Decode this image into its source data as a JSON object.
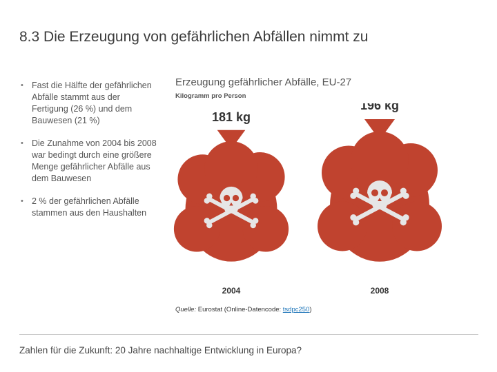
{
  "slide": {
    "number": "8.3",
    "title": "Die Erzeugung von gefährlichen Abfällen nimmt zu"
  },
  "bullets": [
    "Fast die Hälfte der gefährlichen Abfälle stammt aus der Fertigung (26 %) und dem Bauwesen (21 %)",
    "Die Zunahme von 2004 bis 2008 war bedingt durch eine größere Menge gefährlicher Abfälle aus dem Bauwesen",
    "2 % der gefährlichen Abfälle stammen aus den Haushalten"
  ],
  "bullet_marker": "•",
  "chart_data": {
    "type": "bar",
    "title": "Erzeugung gefährlicher Abfälle, EU-27",
    "subtitle": "Kilogramm pro Person",
    "categories": [
      "2004",
      "2008"
    ],
    "values": [
      181,
      196
    ],
    "value_labels": [
      "181 kg",
      "196 kg"
    ],
    "unit": "kg",
    "bag_color": "#c0432f",
    "skull_color": "#e6e6e6",
    "label_color": "#333333"
  },
  "source": {
    "label": "Quelle:",
    "text_before": " Eurostat (Online-Datencode: ",
    "code": "tsdpc250",
    "text_after": ")"
  },
  "footer": "Zahlen für die Zukunft: 20 Jahre nachhaltige Entwicklung in Europa?"
}
